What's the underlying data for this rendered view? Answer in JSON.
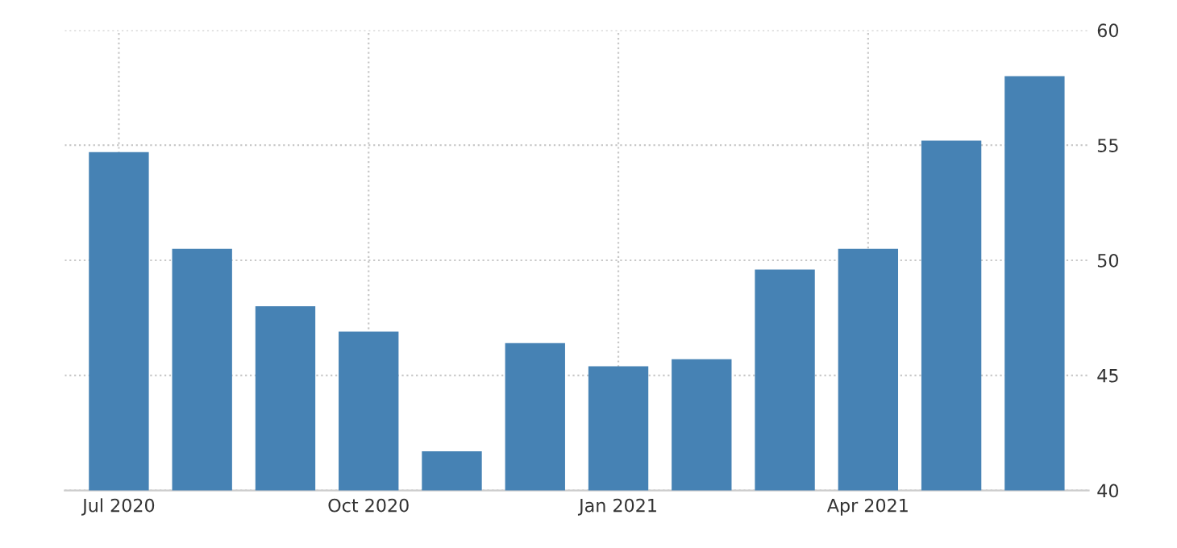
{
  "chart_data": {
    "type": "bar",
    "categories": [
      "Jul 2020",
      null,
      null,
      "Oct 2020",
      null,
      null,
      "Jan 2021",
      null,
      null,
      "Apr 2021",
      null,
      null
    ],
    "values": [
      54.7,
      50.5,
      48.0,
      46.9,
      41.7,
      46.4,
      45.4,
      45.7,
      49.6,
      50.5,
      55.2,
      58.0
    ],
    "color": "#4682b4",
    "ylim": [
      40,
      60
    ],
    "yticks": [
      40,
      45,
      50,
      55,
      60
    ],
    "grid": true
  }
}
